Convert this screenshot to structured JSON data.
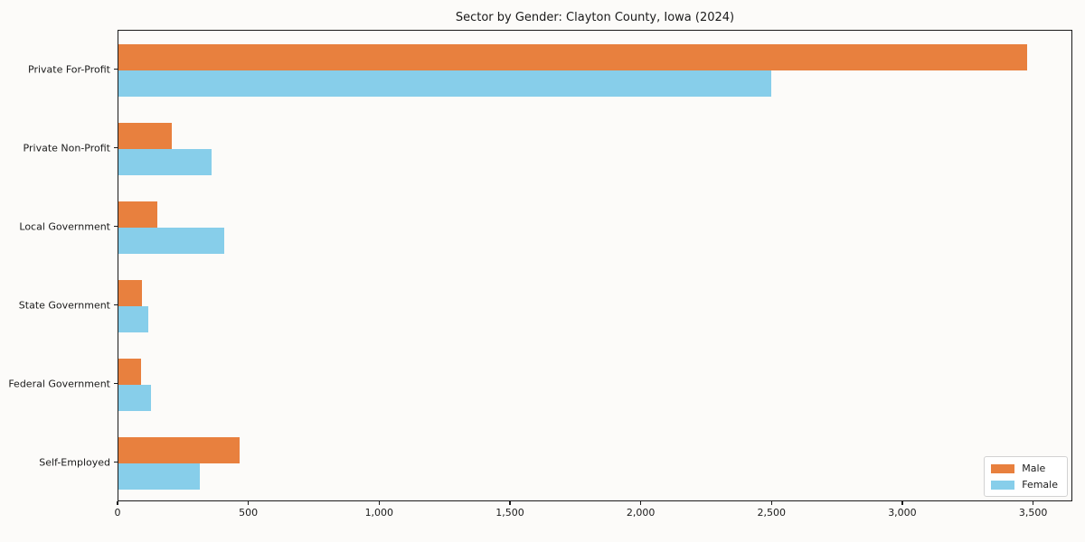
{
  "title": "Sector by Gender: Clayton County, Iowa (2024)",
  "chart_data": {
    "type": "bar",
    "orientation": "horizontal",
    "title": "Sector by Gender: Clayton County, Iowa (2024)",
    "categories": [
      "Private For-Profit",
      "Private Non-Profit",
      "Local Government",
      "State Government",
      "Federal Government",
      "Self-Employed"
    ],
    "series": [
      {
        "name": "Male",
        "color": "#e8803e",
        "values": [
          3480,
          205,
          150,
          90,
          85,
          465
        ]
      },
      {
        "name": "Female",
        "color": "#87ceea",
        "values": [
          2500,
          355,
          405,
          115,
          125,
          310
        ]
      }
    ],
    "xlabel": "",
    "ylabel": "",
    "xlim": [
      0,
      3650
    ],
    "xticks": [
      0,
      500,
      1000,
      1500,
      2000,
      2500,
      3000,
      3500
    ],
    "xtick_labels": [
      "0",
      "500",
      "1,000",
      "1,500",
      "2,000",
      "2,500",
      "3,000",
      "3,500"
    ],
    "grid": false,
    "legend_position": "lower right",
    "legend_entries": [
      "Male",
      "Female"
    ]
  },
  "colors": {
    "male": "#e8803e",
    "female": "#87ceea",
    "background": "#fcfbf9",
    "spine": "#1a1a1a",
    "legend_border": "#d2d2d2"
  }
}
